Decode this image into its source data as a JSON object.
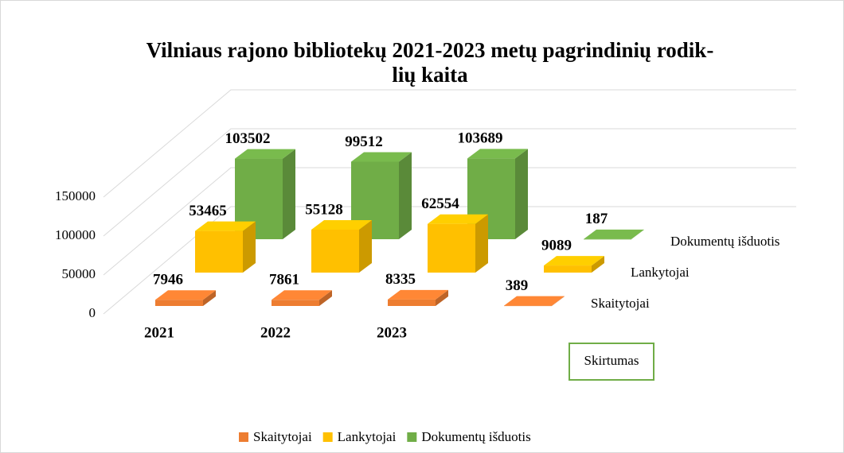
{
  "chart_data": {
    "type": "bar3d",
    "title": [
      "Vilniaus rajono bibliotekų 2021-2023 metų pagrindinių rodik-",
      "lių kaita"
    ],
    "categories": [
      "2021",
      "2022",
      "2023",
      "Skirtumas"
    ],
    "series": [
      {
        "name": "Skaitytojai",
        "color": "#ed7d31",
        "values": [
          7946,
          7861,
          8335,
          389
        ]
      },
      {
        "name": "Lankytojai",
        "color": "#ffc000",
        "values": [
          53465,
          55128,
          62554,
          9089
        ]
      },
      {
        "name": "Dokumentų išduotis",
        "color": "#70ad47",
        "values": [
          103502,
          99512,
          103689,
          187
        ]
      }
    ],
    "ylim": [
      0,
      150000
    ],
    "yticks": [
      0,
      50000,
      100000,
      150000
    ],
    "grid": true,
    "legend": "bottom"
  }
}
